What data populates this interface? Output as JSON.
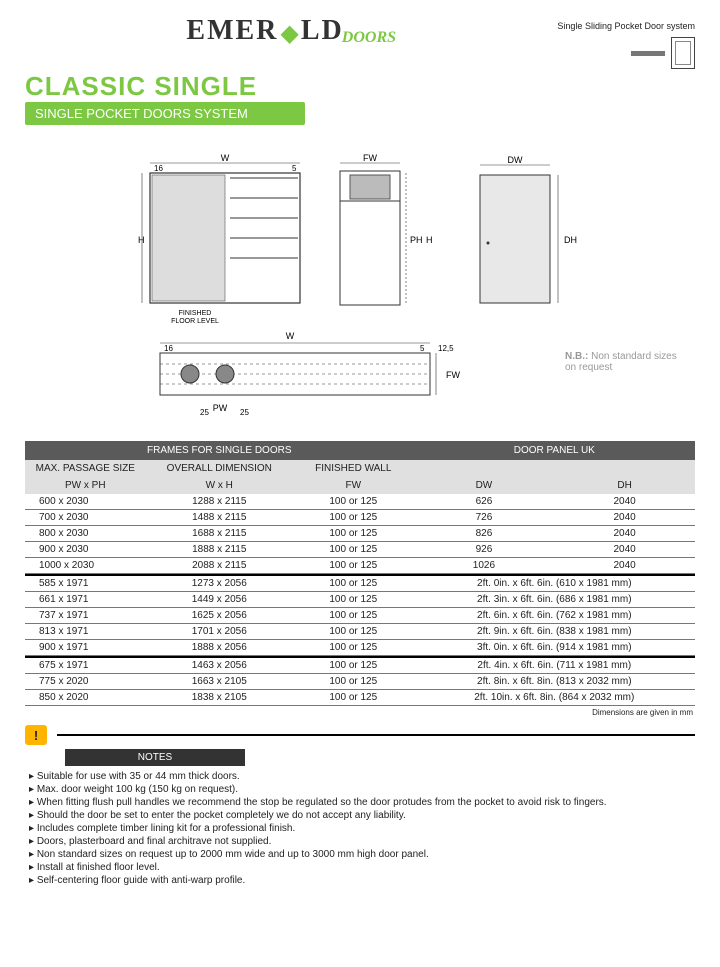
{
  "brand": {
    "part1": "EMER",
    "part2": "LD",
    "sub": "DOORS"
  },
  "top_right": "Single Sliding Pocket Door system",
  "title": "CLASSIC SINGLE",
  "subtitle": "SINGLE POCKET DOORS SYSTEM",
  "nb": {
    "label": "N.B.:",
    "text": " Non standard sizes on request"
  },
  "diagram_labels": {
    "W": "W",
    "FW": "FW",
    "H": "H",
    "PH": "PH",
    "DW": "DW",
    "DH": "DH",
    "PW": "PW",
    "ffl": "FINISHED FLOOR LEVEL",
    "d16": "16",
    "d5": "5",
    "d125": "12,5",
    "d25": "25"
  },
  "table": {
    "hdr1_left": "FRAMES FOR SINGLE DOORS",
    "hdr1_right": "DOOR PANEL UK",
    "h2": {
      "c1": "MAX. PASSAGE SIZE",
      "c2": "OVERALL DIMENSION",
      "c3": "FINISHED WALL",
      "c4": "",
      "c5": ""
    },
    "h3": {
      "c1": "PW x PH",
      "c2": "W x H",
      "c3": "FW",
      "c4": "DW",
      "c5": "DH"
    },
    "rows_a": [
      {
        "c1": "600 x 2030",
        "c2": "1288 x 2115",
        "c3": "100 or 125",
        "c4": "626",
        "c5": "2040"
      },
      {
        "c1": "700 x 2030",
        "c2": "1488 x 2115",
        "c3": "100 or 125",
        "c4": "726",
        "c5": "2040"
      },
      {
        "c1": "800 x 2030",
        "c2": "1688 x 2115",
        "c3": "100 or 125",
        "c4": "826",
        "c5": "2040"
      },
      {
        "c1": "900 x 2030",
        "c2": "1888 x 2115",
        "c3": "100 or 125",
        "c4": "926",
        "c5": "2040"
      },
      {
        "c1": "1000 x 2030",
        "c2": "2088 x 2115",
        "c3": "100 or 125",
        "c4": "1026",
        "c5": "2040"
      }
    ],
    "rows_b": [
      {
        "c1": "585 x 1971",
        "c2": "1273 x 2056",
        "c3": "100 or 125",
        "cx": "2ft. 0in. x 6ft. 6in. (610 x 1981 mm)"
      },
      {
        "c1": "661 x 1971",
        "c2": "1449 x 2056",
        "c3": "100 or 125",
        "cx": "2ft. 3in. x 6ft. 6in. (686 x 1981 mm)"
      },
      {
        "c1": "737 x 1971",
        "c2": "1625 x 2056",
        "c3": "100 or 125",
        "cx": "2ft. 6in. x 6ft. 6in. (762 x 1981 mm)"
      },
      {
        "c1": "813 x 1971",
        "c2": "1701 x 2056",
        "c3": "100 or 125",
        "cx": "2ft. 9in. x 6ft. 6in. (838 x 1981 mm)"
      },
      {
        "c1": "900 x 1971",
        "c2": "1888 x 2056",
        "c3": "100 or 125",
        "cx": "3ft. 0in. x 6ft. 6in. (914 x 1981 mm)"
      }
    ],
    "rows_c": [
      {
        "c1": "675 x 1971",
        "c2": "1463 x 2056",
        "c3": "100 or 125",
        "cx": "2ft. 4in. x 6ft. 6in. (711 x 1981 mm)"
      },
      {
        "c1": "775 x 2020",
        "c2": "1663 x 2105",
        "c3": "100 or 125",
        "cx": "2ft. 8in. x 6ft. 8in. (813 x 2032 mm)"
      },
      {
        "c1": "850 x 2020",
        "c2": "1838 x 2105",
        "c3": "100 or 125",
        "cx": "2ft. 10in. x 6ft. 8in. (864 x 2032 mm)"
      }
    ],
    "dim_note": "Dimensions are given in mm"
  },
  "notes": {
    "header": "NOTES",
    "items": [
      "Suitable for use with 35 or 44 mm thick doors.",
      "Max. door weight 100 kg (150 kg on request).",
      "When fitting flush pull handles we recommend the stop be regulated so the door protudes from the pocket to avoid risk to fingers.",
      "Should the door be set to enter the pocket completely we do not accept any liability.",
      "Includes complete timber lining kit for a professional finish.",
      "Doors, plasterboard and final architrave not supplied.",
      "Non standard sizes on request up to 2000 mm wide and up to 3000 mm high door panel.",
      "Install at finished floor level.",
      "Self-centering floor guide with anti-warp profile."
    ]
  },
  "colors": {
    "accent": "#7cc843",
    "dark": "#5a5a5a",
    "light": "#e0e0e0"
  }
}
